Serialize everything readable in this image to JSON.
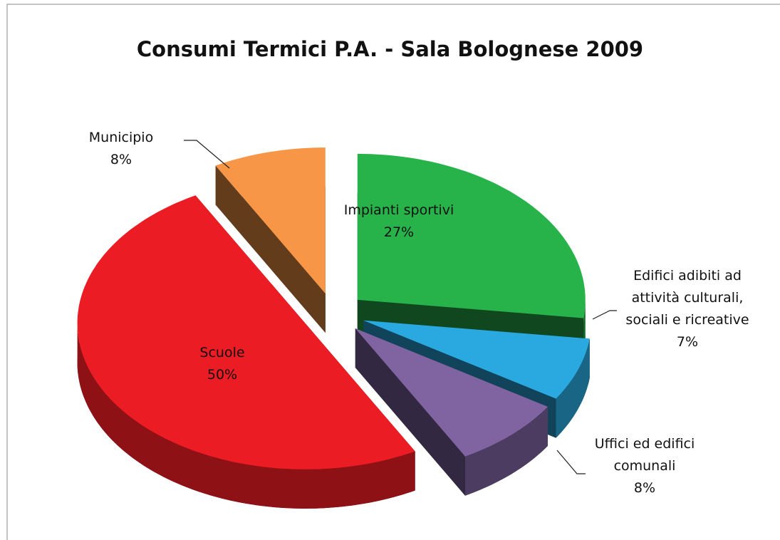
{
  "chart_data": {
    "type": "pie3d",
    "title": "Consumi Termici P.A. - Sala Bolognese 2009",
    "categories": [
      "Impianti sportivi",
      "Edifici adibiti ad attività culturali, sociali e ricreative",
      "Uffici ed edifici comunali",
      "Scuole",
      "Municipio"
    ],
    "values": [
      27,
      7,
      8,
      50,
      8
    ],
    "value_labels": [
      "27%",
      "7%",
      "8%",
      "50%",
      "8%"
    ],
    "colors": [
      "#27b24a",
      "#2aa9e0",
      "#8064a2",
      "#ec1c24",
      "#f79646"
    ]
  }
}
